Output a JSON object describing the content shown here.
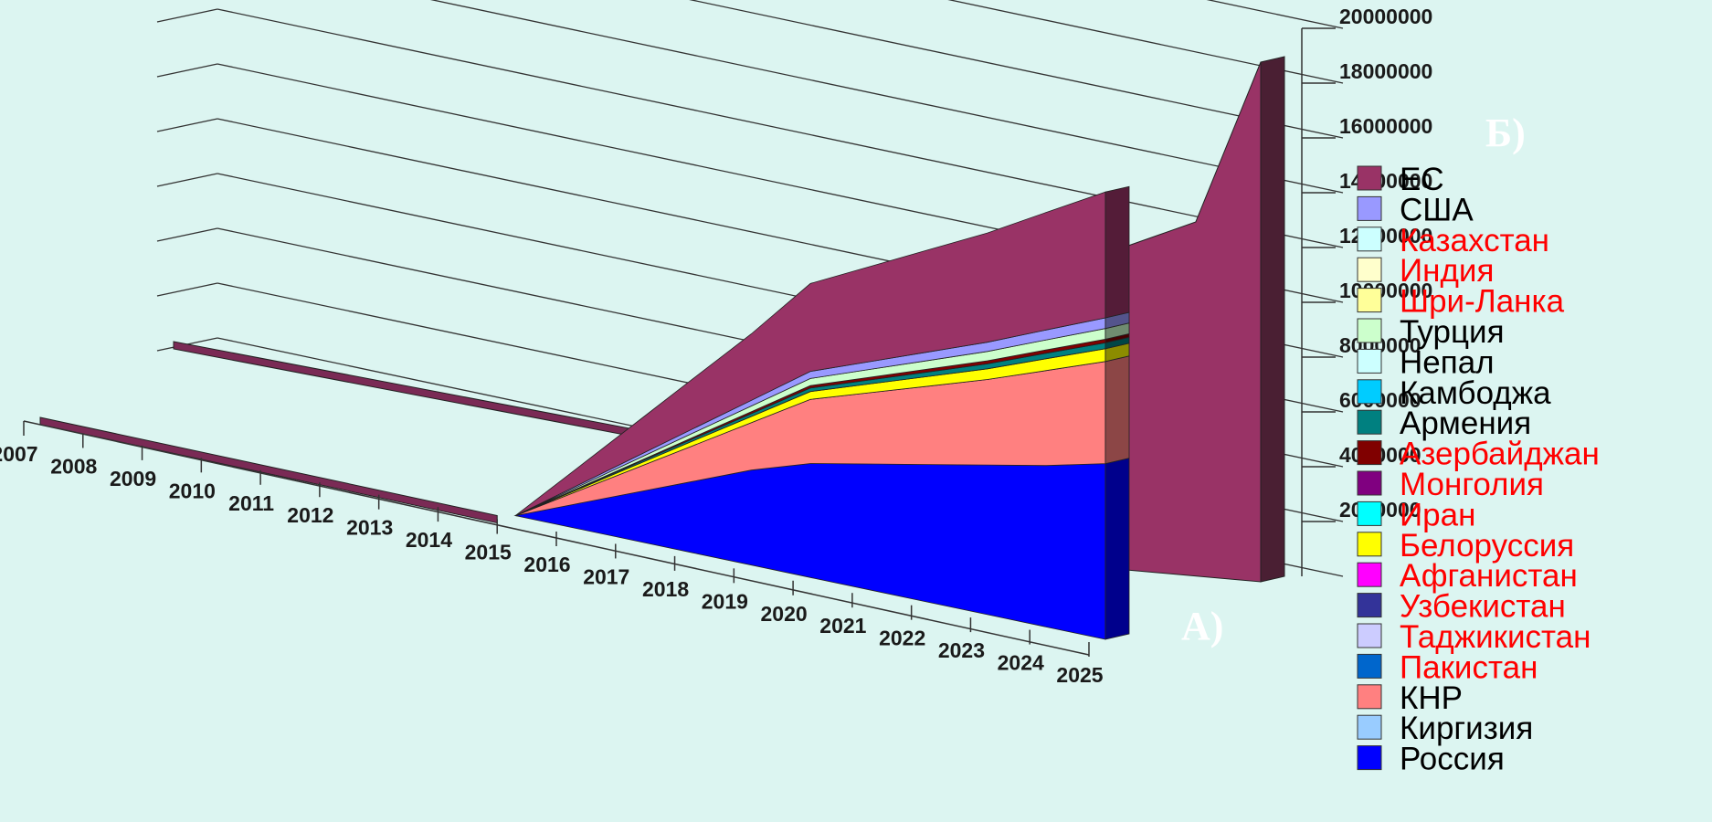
{
  "chart_data": {
    "type": "area",
    "projection": "3d",
    "title": "",
    "xlabel": "",
    "ylabel": "",
    "x": [
      "2007",
      "2008",
      "2009",
      "2010",
      "2011",
      "2012",
      "2013",
      "2014",
      "2015",
      "2016",
      "2017",
      "2018",
      "2019",
      "2020",
      "2021",
      "2022",
      "2023",
      "2024",
      "2025"
    ],
    "y_ticks": [
      "2000000",
      "4000000",
      "6000000",
      "8000000",
      "10000000",
      "12000000",
      "14000000",
      "16000000",
      "18000000",
      "20000000"
    ],
    "ylim": [
      0,
      20000000
    ],
    "grid": true,
    "legend_position": "right",
    "panel_labels": [
      "А)",
      "Б)"
    ],
    "panels": [
      {
        "label": "А)",
        "series": [
          {
            "name": "Россия",
            "color": "#0000ff",
            "values": [
              0,
              0,
              0,
              0,
              0,
              0,
              0,
              0,
              0,
              1000000,
              2000000,
              3000000,
              4000000,
              4800000,
              5300000,
              5800000,
              6300000,
              6800000,
              7400000
            ]
          },
          {
            "name": "КНР",
            "color": "#ff8080",
            "values": [
              0,
              0,
              0,
              0,
              0,
              0,
              0,
              0,
              0,
              500000,
              1000000,
              1500000,
              2000000,
              2700000,
              3000000,
              3300000,
              3600000,
              4000000,
              4300000
            ]
          },
          {
            "name": "Белоруссия",
            "color": "#ffff00",
            "values": [
              0,
              0,
              0,
              0,
              0,
              0,
              0,
              0,
              0,
              60000,
              130000,
              200000,
              260000,
              330000,
              370000,
              410000,
              450000,
              500000,
              540000
            ]
          },
          {
            "name": "Армения",
            "color": "#008080",
            "values": [
              0,
              0,
              0,
              0,
              0,
              0,
              0,
              0,
              0,
              30000,
              60000,
              90000,
              120000,
              150000,
              170000,
              190000,
              210000,
              230000,
              250000
            ]
          },
          {
            "name": "Азербайджан",
            "color": "#800000",
            "values": [
              0,
              0,
              0,
              0,
              0,
              0,
              0,
              0,
              0,
              20000,
              40000,
              60000,
              80000,
              100000,
              110000,
              120000,
              130000,
              140000,
              150000
            ]
          },
          {
            "name": "Турция",
            "color": "#ccffcc",
            "values": [
              0,
              0,
              0,
              0,
              0,
              0,
              0,
              0,
              0,
              60000,
              120000,
              180000,
              240000,
              300000,
              330000,
              360000,
              390000,
              420000,
              450000
            ]
          },
          {
            "name": "США",
            "color": "#9999ff",
            "values": [
              0,
              0,
              0,
              0,
              0,
              0,
              0,
              0,
              0,
              60000,
              120000,
              180000,
              240000,
              300000,
              330000,
              360000,
              390000,
              420000,
              450000
            ]
          },
          {
            "name": "ЕС",
            "color": "#993366",
            "values": [
              0,
              0,
              0,
              0,
              0,
              0,
              0,
              0,
              0,
              700000,
              1400000,
              2100000,
              2800000,
              3700000,
              4000000,
              4300000,
              4600000,
              4950000,
              5300000
            ]
          }
        ]
      },
      {
        "label": "Б)",
        "series": [
          {
            "name": "Россия",
            "color": "#0000ff",
            "values": [
              0,
              0,
              0,
              0,
              0,
              0,
              0,
              0,
              0,
              0,
              0,
              0,
              0,
              0,
              0,
              0,
              0,
              0,
              0
            ]
          },
          {
            "name": "ЕС",
            "color": "#993366",
            "values": [
              0,
              0,
              0,
              0,
              0,
              0,
              0,
              0,
              0,
              0,
              0,
              0,
              0,
              0,
              0,
              0,
              0,
              0,
              0
            ]
          }
        ]
      }
    ],
    "legend": [
      {
        "name": "ЕС",
        "color": "#993366",
        "text_color": "#000000"
      },
      {
        "name": "США",
        "color": "#9999ff",
        "text_color": "#000000"
      },
      {
        "name": "Казахстан",
        "color": "#ccffff",
        "text_color": "#ff0000"
      },
      {
        "name": "Индия",
        "color": "#ffffcc",
        "text_color": "#ff0000"
      },
      {
        "name": "Шри-Ланка",
        "color": "#ffff99",
        "text_color": "#ff0000"
      },
      {
        "name": "Турция",
        "color": "#ccffcc",
        "text_color": "#000000"
      },
      {
        "name": "Непал",
        "color": "#ccffff",
        "text_color": "#000000"
      },
      {
        "name": "Камбоджа",
        "color": "#00ccff",
        "text_color": "#000000"
      },
      {
        "name": "Армения",
        "color": "#008080",
        "text_color": "#000000"
      },
      {
        "name": "Азербайджан",
        "color": "#800000",
        "text_color": "#ff0000"
      },
      {
        "name": "Монголия",
        "color": "#800080",
        "text_color": "#ff0000"
      },
      {
        "name": "Иран",
        "color": "#00ffff",
        "text_color": "#ff0000"
      },
      {
        "name": "Белоруссия",
        "color": "#ffff00",
        "text_color": "#ff0000"
      },
      {
        "name": "Афганистан",
        "color": "#ff00ff",
        "text_color": "#ff0000"
      },
      {
        "name": "Узбекистан",
        "color": "#333399",
        "text_color": "#ff0000"
      },
      {
        "name": "Таджикистан",
        "color": "#ccccff",
        "text_color": "#ff0000"
      },
      {
        "name": "Пакистан",
        "color": "#0066cc",
        "text_color": "#ff0000"
      },
      {
        "name": "КНР",
        "color": "#ff8080",
        "text_color": "#000000"
      },
      {
        "name": "Киргизия",
        "color": "#99ccff",
        "text_color": "#000000"
      },
      {
        "name": "Россия",
        "color": "#0000ff",
        "text_color": "#000000"
      }
    ]
  }
}
